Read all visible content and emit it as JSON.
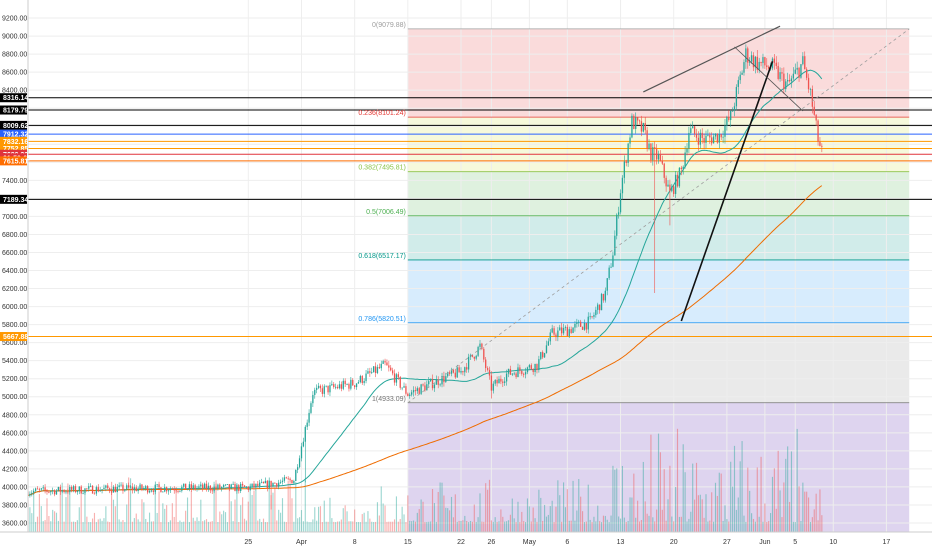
{
  "chart_data": {
    "type": "candlestick",
    "title": "",
    "xlabel": "",
    "ylabel": "",
    "ylim": [
      3500,
      9400
    ],
    "xlim": [
      -36,
      83
    ],
    "grid": true,
    "price_ticks": [
      "9200.00",
      "9000.00",
      "8800.00",
      "8600.00",
      "8400.00",
      "8200.00",
      "8000.00",
      "7800.00",
      "7600.00",
      "7400.00",
      "7200.00",
      "7000.00",
      "6800.00",
      "6600.00",
      "6400.00",
      "6200.00",
      "6000.00",
      "5800.00",
      "5600.00",
      "5400.00",
      "5200.00",
      "5000.00",
      "4800.00",
      "4600.00",
      "4400.00",
      "4200.00",
      "4000.00",
      "3800.00",
      "3600.00"
    ],
    "date_ticks": [
      {
        "label": "25",
        "day": -7
      },
      {
        "label": "Apr",
        "day": 0
      },
      {
        "label": "8",
        "day": 7
      },
      {
        "label": "15",
        "day": 14
      },
      {
        "label": "22",
        "day": 21
      },
      {
        "label": "26",
        "day": 25
      },
      {
        "label": "May",
        "day": 30
      },
      {
        "label": "6",
        "day": 35
      },
      {
        "label": "13",
        "day": 42
      },
      {
        "label": "20",
        "day": 49
      },
      {
        "label": "27",
        "day": 56
      },
      {
        "label": "Jun",
        "day": 61
      },
      {
        "label": "5",
        "day": 65
      },
      {
        "label": "10",
        "day": 70
      },
      {
        "label": "17",
        "day": 77
      }
    ],
    "price_tags": [
      {
        "label": "8316.14",
        "value": 8316.14,
        "color": "#000000"
      },
      {
        "label": "8179.79",
        "value": 8179.79,
        "color": "#000000"
      },
      {
        "label": "8009.62",
        "value": 8009.62,
        "color": "#000000"
      },
      {
        "label": "7912.32",
        "value": 7912.32,
        "color": "#2962ff"
      },
      {
        "label": "7832.16",
        "value": 7832.16,
        "color": "#ff9800"
      },
      {
        "label": "7752.85",
        "value": 7752.85,
        "color": "#ff9800"
      },
      {
        "label": "7689.33",
        "value": 7689.33,
        "color": "#e0343c"
      },
      {
        "label": "01:59:05",
        "value": 7650,
        "color": "#e0343c"
      },
      {
        "label": "7615.81",
        "value": 7615.81,
        "color": "#ff6d00"
      },
      {
        "label": "7189.34",
        "value": 7189.34,
        "color": "#000000"
      },
      {
        "label": "5667.88",
        "value": 5667.88,
        "color": "#ff9800"
      }
    ],
    "fib_levels": [
      {
        "label": "0(9079.88)",
        "ratio": 0,
        "value": 9079.88,
        "color": "#9e9e9e"
      },
      {
        "label": "0.236(8101.24)",
        "ratio": 0.236,
        "value": 8101.24,
        "color": "#e53935"
      },
      {
        "label": "0.382(7495.81)",
        "ratio": 0.382,
        "value": 7495.81,
        "color": "#8bc34a"
      },
      {
        "label": "0.5(7006.49)",
        "ratio": 0.5,
        "value": 7006.49,
        "color": "#4caf50"
      },
      {
        "label": "0.618(6517.17)",
        "ratio": 0.618,
        "value": 6517.17,
        "color": "#009688"
      },
      {
        "label": "0.786(5820.51)",
        "ratio": 0.786,
        "value": 5820.51,
        "color": "#2196f3"
      },
      {
        "label": "1(4933.09)",
        "ratio": 1,
        "value": 4933.09,
        "color": "#757575"
      }
    ],
    "fib_zone_colors": [
      "rgba(229,57,53,0.18)",
      "rgba(205,220,57,0.18)",
      "rgba(76,175,80,0.18)",
      "rgba(0,150,136,0.18)",
      "rgba(33,150,243,0.18)",
      "rgba(158,158,158,0.22)",
      "rgba(103,58,183,0.22)"
    ],
    "fib_day_range": [
      14,
      80
    ],
    "fib_floor": 3500,
    "trendlines": [
      {
        "from": [
          45,
          8380
        ],
        "to": [
          63,
          9110
        ],
        "color": "#555555",
        "width": 1.2,
        "dash": ""
      },
      {
        "from": [
          50,
          5840
        ],
        "to": [
          62,
          8720
        ],
        "color": "#111111",
        "width": 1.6,
        "dash": ""
      },
      {
        "from": [
          14,
          4933
        ],
        "to": [
          80,
          9079
        ],
        "color": "#9e9e9e",
        "width": 0.8,
        "dash": "3,3"
      },
      {
        "from": [
          57,
          8880
        ],
        "to": [
          66,
          8170
        ],
        "color": "#555555",
        "width": 0.8,
        "dash": ""
      }
    ],
    "ma_fast_color": "#26a69a",
    "ma_slow_color": "#ef6c00",
    "up_color": "#26a69a",
    "down_color": "#ef5350",
    "volume_base": 3500,
    "volume_scale": 1100,
    "anchors": [
      [
        -36,
        3950
      ],
      [
        -25,
        3980
      ],
      [
        -14,
        3990
      ],
      [
        -7,
        3990
      ],
      [
        -1,
        4080
      ],
      [
        0.5,
        4650
      ],
      [
        1.5,
        5050
      ],
      [
        7,
        5150
      ],
      [
        11,
        5350
      ],
      [
        14,
        5030
      ],
      [
        18,
        5180
      ],
      [
        21,
        5280
      ],
      [
        23.5,
        5560
      ],
      [
        25,
        5100
      ],
      [
        27,
        5250
      ],
      [
        31,
        5350
      ],
      [
        33,
        5700
      ],
      [
        35,
        5740
      ],
      [
        38,
        5830
      ],
      [
        40,
        6150
      ],
      [
        41,
        6600
      ],
      [
        42,
        7300
      ],
      [
        43.5,
        8050
      ],
      [
        45,
        7950
      ],
      [
        46,
        7700
      ],
      [
        47,
        7650
      ],
      [
        48.5,
        7250
      ],
      [
        50,
        7500
      ],
      [
        51,
        7950
      ],
      [
        53,
        7850
      ],
      [
        55,
        7900
      ],
      [
        56.5,
        8100
      ],
      [
        58.5,
        8800
      ],
      [
        60,
        8700
      ],
      [
        62,
        8650
      ],
      [
        63,
        8550
      ],
      [
        64,
        8450
      ],
      [
        66,
        8700
      ],
      [
        67,
        8350
      ],
      [
        68,
        7850
      ],
      [
        68.5,
        7700
      ]
    ]
  }
}
